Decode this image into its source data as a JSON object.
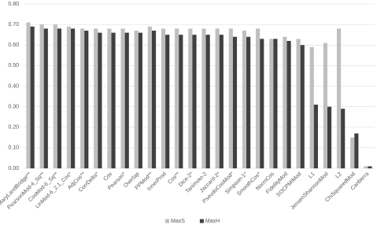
{
  "chart_data": {
    "type": "bar",
    "categories": [
      "MaryLandBridge**",
      "PearsonMod-4_Sq**",
      "CosMod-6_Sq**",
      "LinMod-6_2.1_Cos*",
      "AdjCos**",
      "CorrDelta*",
      "Cov",
      "Pearson*",
      "Overlap",
      "PPMod**",
      "InnerProd",
      "Cos**",
      "Dice-2*",
      "Tanimoto-2",
      "Jaccard-2*",
      "PseudoCosMod*",
      "Simpson-1*",
      "SmoothCos*",
      "NormCos",
      "FidelityMod",
      "SOCPMIMod",
      "L1",
      "JensenShannonMod",
      "L2",
      "ChiSquaredMod",
      "Canberra"
    ],
    "series": [
      {
        "name": "MaxS",
        "color": "#bfbfbf",
        "values": [
          0.71,
          0.7,
          0.7,
          0.69,
          0.68,
          0.68,
          0.68,
          0.68,
          0.67,
          0.69,
          0.68,
          0.68,
          0.68,
          0.68,
          0.68,
          0.68,
          0.67,
          0.68,
          0.63,
          0.64,
          0.63,
          0.59,
          0.61,
          0.68,
          0.15,
          0.01
        ]
      },
      {
        "name": "MaxH",
        "color": "#404040",
        "values": [
          0.69,
          0.68,
          0.68,
          0.68,
          0.67,
          0.66,
          0.66,
          0.66,
          0.66,
          0.67,
          0.65,
          0.65,
          0.65,
          0.65,
          0.65,
          0.64,
          0.64,
          0.63,
          0.63,
          0.62,
          0.6,
          0.31,
          0.3,
          0.29,
          0.17,
          0.01
        ]
      }
    ],
    "ylim": [
      0,
      0.8
    ],
    "yticks": [
      {
        "value": 0,
        "label": "0.00"
      },
      {
        "value": 0.1,
        "label": "0.10"
      },
      {
        "value": 0.2,
        "label": "0.20"
      },
      {
        "value": 0.3,
        "label": "0.30"
      },
      {
        "value": 0.4,
        "label": "0.40"
      },
      {
        "value": 0.5,
        "label": "0.50"
      },
      {
        "value": 0.6,
        "label": "0.60"
      },
      {
        "value": 0.7,
        "label": "0.70"
      },
      {
        "value": 0.8,
        "label": "0.80"
      }
    ],
    "grid": true,
    "legend": "bottom"
  }
}
